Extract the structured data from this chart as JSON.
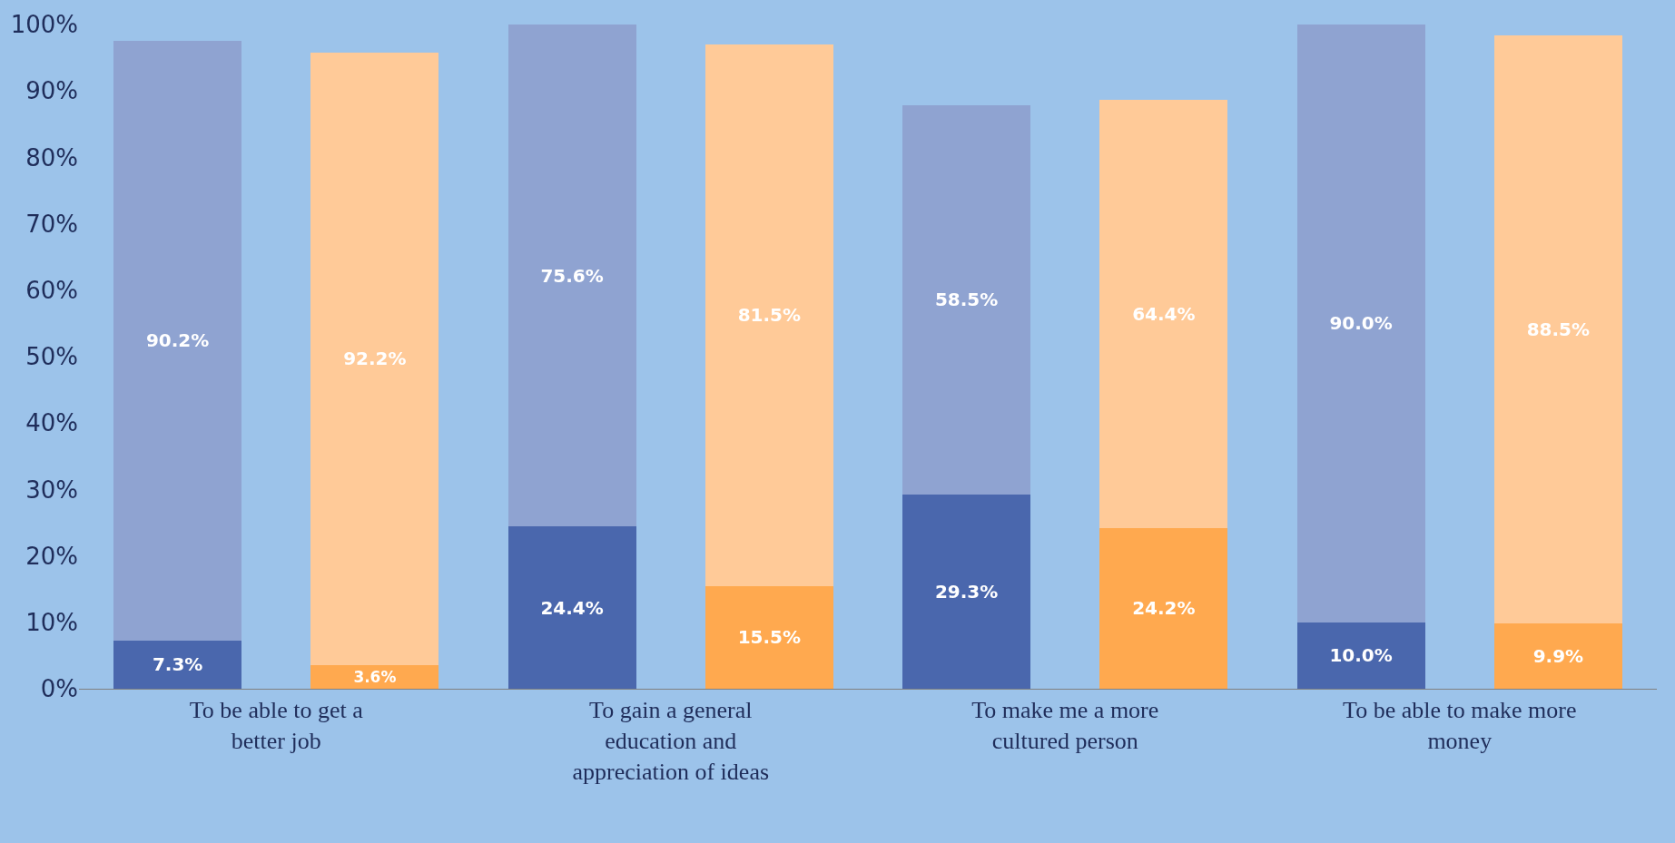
{
  "chart_data": {
    "type": "bar",
    "stacked": true,
    "categories": [
      "To be able to get a better job",
      null,
      "To gain a general education and appreciation of ideas",
      null,
      "To make me a more cultured person",
      null,
      "To be able to make more money",
      null
    ],
    "series": [
      {
        "colors": [
          "#4a67ad",
          "#ffa94f",
          "#4a67ad",
          "#ffa94f",
          "#4a67ad",
          "#ffa94f",
          "#4a67ad",
          "#ffa94f"
        ],
        "values": [
          7.3,
          3.6,
          24.4,
          15.5,
          29.3,
          24.2,
          10.0,
          9.9
        ],
        "value_labels": [
          "7.3%",
          "3.6%",
          "24.4%",
          "15.5%",
          "29.3%",
          "24.2%",
          "10.0%",
          "9.9%"
        ]
      },
      {
        "colors": [
          "#8fa3d1",
          "#ffca98",
          "#8fa3d1",
          "#ffca98",
          "#8fa3d1",
          "#ffca98",
          "#8fa3d1",
          "#ffca98"
        ],
        "values": [
          90.2,
          92.2,
          75.6,
          81.5,
          58.5,
          64.4,
          90.0,
          88.5
        ],
        "value_labels": [
          "90.2%",
          "92.2%",
          "75.6%",
          "81.5%",
          "58.5%",
          "64.4%",
          "90.0%",
          "88.5%"
        ]
      }
    ],
    "ylim": [
      0,
      100
    ],
    "yticks": [
      {
        "value": 0,
        "label": "0%"
      },
      {
        "value": 10,
        "label": "10%"
      },
      {
        "value": 20,
        "label": "20%"
      },
      {
        "value": 30,
        "label": "30%"
      },
      {
        "value": 40,
        "label": "40%"
      },
      {
        "value": 50,
        "label": "50%"
      },
      {
        "value": 60,
        "label": "60%"
      },
      {
        "value": 70,
        "label": "70%"
      },
      {
        "value": 80,
        "label": "80%"
      },
      {
        "value": 90,
        "label": "90%"
      },
      {
        "value": 100,
        "label": "100%"
      }
    ]
  }
}
